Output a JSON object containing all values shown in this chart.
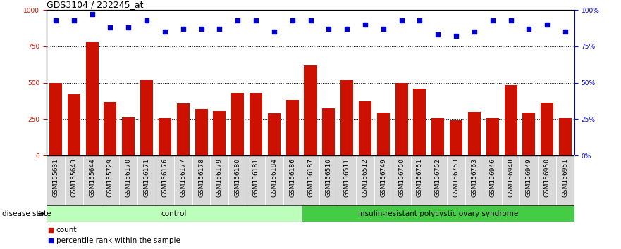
{
  "title": "GDS3104 / 232245_at",
  "samples": [
    "GSM155631",
    "GSM155643",
    "GSM155644",
    "GSM155729",
    "GSM156170",
    "GSM156171",
    "GSM156176",
    "GSM156177",
    "GSM156178",
    "GSM156179",
    "GSM156180",
    "GSM156181",
    "GSM156184",
    "GSM156186",
    "GSM156187",
    "GSM156510",
    "GSM156511",
    "GSM156512",
    "GSM156749",
    "GSM156750",
    "GSM156751",
    "GSM156752",
    "GSM156753",
    "GSM156763",
    "GSM156946",
    "GSM156948",
    "GSM156949",
    "GSM156950",
    "GSM156951"
  ],
  "counts": [
    500,
    420,
    780,
    370,
    260,
    520,
    255,
    360,
    320,
    305,
    430,
    430,
    290,
    385,
    620,
    325,
    520,
    375,
    295,
    500,
    460,
    255,
    245,
    300,
    255,
    485,
    295,
    365,
    255
  ],
  "percentile_ranks": [
    93,
    93,
    97,
    88,
    88,
    93,
    85,
    87,
    87,
    87,
    93,
    93,
    85,
    93,
    93,
    87,
    87,
    90,
    87,
    93,
    93,
    83,
    82,
    85,
    93,
    93,
    87,
    90,
    85
  ],
  "control_count": 14,
  "disease_count": 15,
  "ylim_left": [
    0,
    1000
  ],
  "ylim_right": [
    0,
    100
  ],
  "yticks_left": [
    0,
    250,
    500,
    750,
    1000
  ],
  "yticks_right": [
    0,
    25,
    50,
    75,
    100
  ],
  "bar_color": "#cc1100",
  "dot_color": "#0000cc",
  "control_color": "#bbffbb",
  "disease_color": "#44cc44",
  "title_fontsize": 9,
  "tick_fontsize": 6.5,
  "label_fontsize": 7.5
}
